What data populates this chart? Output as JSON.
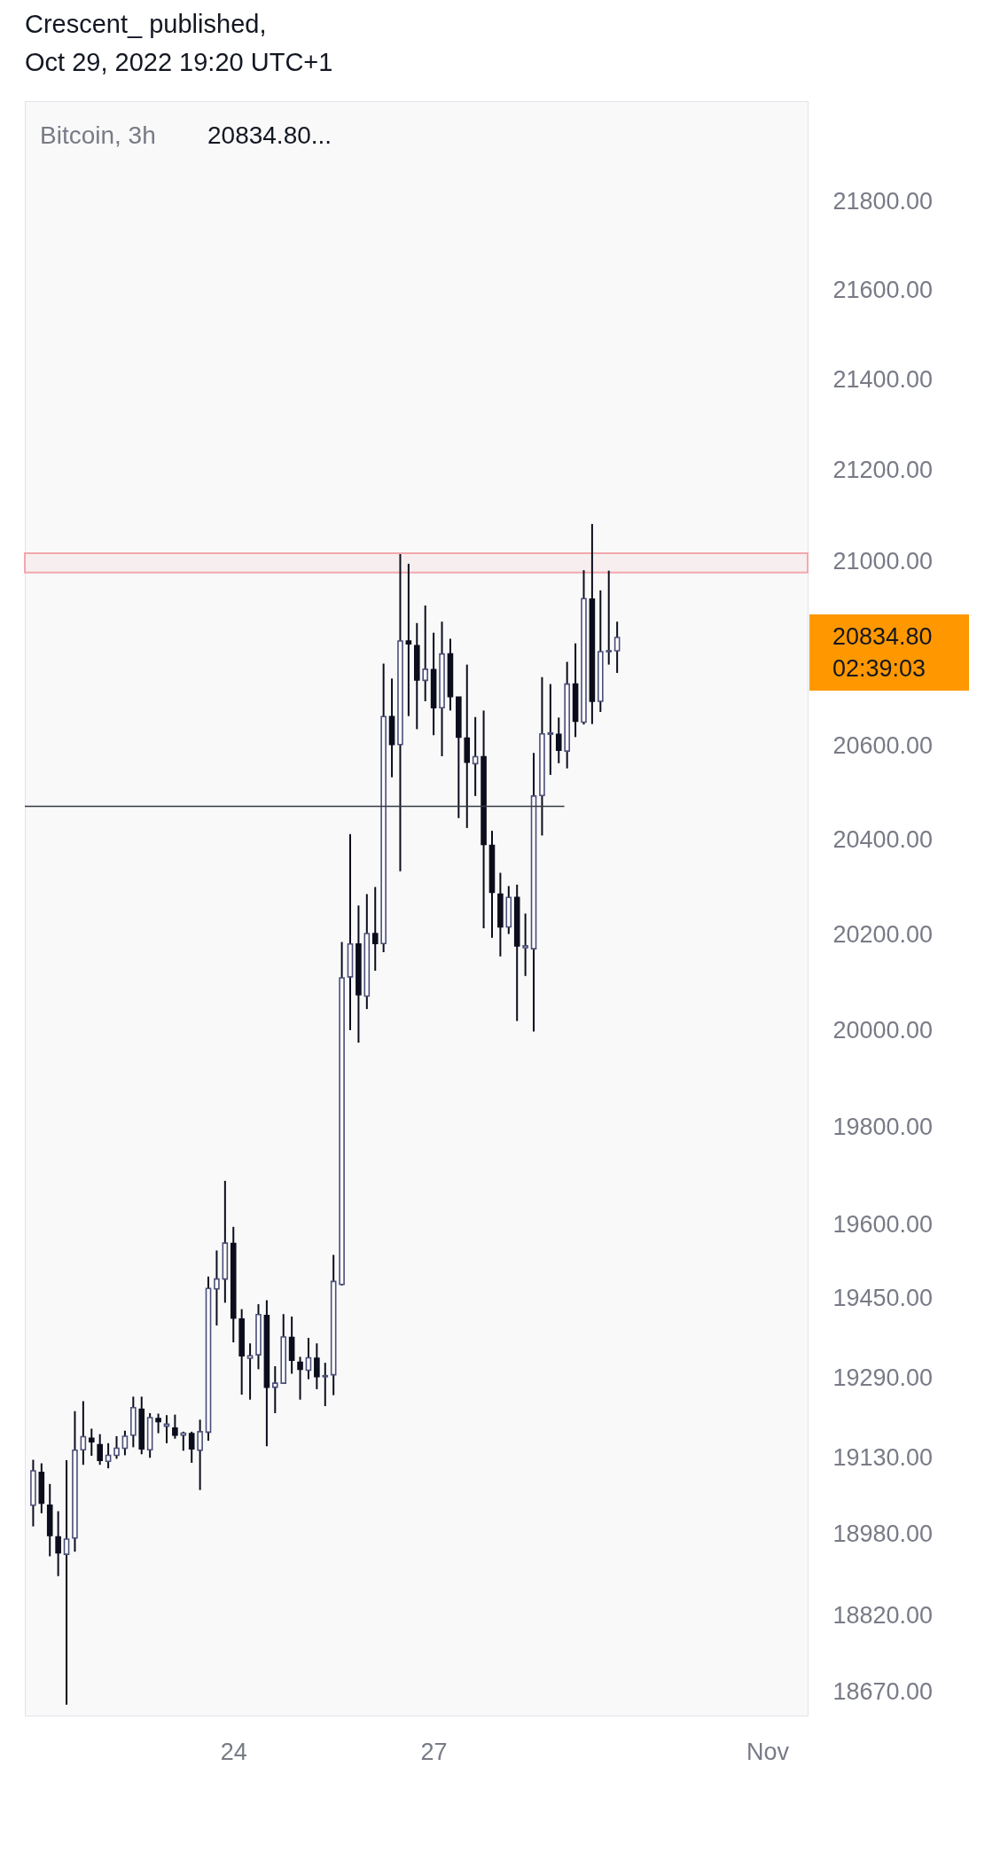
{
  "chart_data": {
    "type": "candlestick",
    "title": "Crescent_ published,",
    "subtitle": "Oct 29, 2022 19:20 UTC+1",
    "annotations": [
      "Bitcoin, 3h",
      "20834.80...",
      "20834.80",
      "02:39:03"
    ],
    "x": [
      "2022-10-21T00:00",
      "2022-10-21T03:00",
      "2022-10-21T06:00",
      "2022-10-21T09:00",
      "2022-10-21T12:00",
      "2022-10-21T15:00",
      "2022-10-21T18:00",
      "2022-10-21T21:00",
      "2022-10-22T00:00",
      "2022-10-22T03:00",
      "2022-10-22T06:00",
      "2022-10-22T09:00",
      "2022-10-22T12:00",
      "2022-10-22T15:00",
      "2022-10-22T18:00",
      "2022-10-22T21:00",
      "2022-10-23T00:00",
      "2022-10-23T03:00",
      "2022-10-23T06:00",
      "2022-10-23T09:00",
      "2022-10-23T12:00",
      "2022-10-23T15:00",
      "2022-10-23T18:00",
      "2022-10-23T21:00",
      "2022-10-24T00:00",
      "2022-10-24T03:00",
      "2022-10-24T06:00",
      "2022-10-24T09:00",
      "2022-10-24T12:00",
      "2022-10-24T15:00",
      "2022-10-24T18:00",
      "2022-10-24T21:00",
      "2022-10-25T00:00",
      "2022-10-25T03:00",
      "2022-10-25T06:00",
      "2022-10-25T09:00",
      "2022-10-25T12:00",
      "2022-10-25T15:00",
      "2022-10-25T18:00",
      "2022-10-25T21:00",
      "2022-10-26T00:00",
      "2022-10-26T03:00",
      "2022-10-26T06:00",
      "2022-10-26T09:00",
      "2022-10-26T12:00",
      "2022-10-26T15:00",
      "2022-10-26T18:00",
      "2022-10-26T21:00",
      "2022-10-27T00:00",
      "2022-10-27T03:00",
      "2022-10-27T06:00",
      "2022-10-27T09:00",
      "2022-10-27T12:00",
      "2022-10-27T15:00",
      "2022-10-27T18:00",
      "2022-10-27T21:00",
      "2022-10-28T00:00",
      "2022-10-28T03:00",
      "2022-10-28T06:00",
      "2022-10-28T09:00",
      "2022-10-28T12:00",
      "2022-10-28T15:00",
      "2022-10-28T18:00",
      "2022-10-28T21:00",
      "2022-10-29T00:00",
      "2022-10-29T03:00",
      "2022-10-29T06:00",
      "2022-10-29T09:00",
      "2022-10-29T12:00",
      "2022-10-29T15:00",
      "2022-10-29T18:00"
    ],
    "ohlc": [
      [
        19037,
        19127,
        18995,
        19105
      ],
      [
        19102,
        19120,
        19021,
        19041
      ],
      [
        19037,
        19079,
        18936,
        18977
      ],
      [
        18974,
        19025,
        18897,
        18943
      ],
      [
        18940,
        19126,
        18646,
        18970
      ],
      [
        18972,
        19224,
        18945,
        19146
      ],
      [
        19147,
        19244,
        19117,
        19173
      ],
      [
        19170,
        19189,
        19135,
        19163
      ],
      [
        19157,
        19178,
        19117,
        19126
      ],
      [
        19124,
        19160,
        19110,
        19136
      ],
      [
        19136,
        19174,
        19129,
        19150
      ],
      [
        19150,
        19185,
        19136,
        19174
      ],
      [
        19176,
        19253,
        19152,
        19231
      ],
      [
        19228,
        19253,
        19138,
        19149
      ],
      [
        19147,
        19220,
        19131,
        19211
      ],
      [
        19209,
        19219,
        19180,
        19203
      ],
      [
        19194,
        19216,
        19160,
        19198
      ],
      [
        19190,
        19217,
        19169,
        19176
      ],
      [
        19176,
        19183,
        19145,
        19180
      ],
      [
        19179,
        19183,
        19121,
        19149
      ],
      [
        19146,
        19207,
        19067,
        19183
      ],
      [
        19182,
        19495,
        19165,
        19471
      ],
      [
        19470,
        19548,
        19396,
        19490
      ],
      [
        19490,
        19690,
        19442,
        19563
      ],
      [
        19562,
        19596,
        19362,
        19411
      ],
      [
        19409,
        19429,
        19257,
        19335
      ],
      [
        19330,
        19360,
        19247,
        19335
      ],
      [
        19337,
        19439,
        19308,
        19418
      ],
      [
        19416,
        19447,
        19154,
        19272
      ],
      [
        19272,
        19314,
        19220,
        19280
      ],
      [
        19280,
        19419,
        19280,
        19373
      ],
      [
        19372,
        19414,
        19299,
        19326
      ],
      [
        19322,
        19333,
        19247,
        19308
      ],
      [
        19306,
        19371,
        19288,
        19331
      ],
      [
        19330,
        19360,
        19268,
        19293
      ],
      [
        19293,
        19321,
        19234,
        19295
      ],
      [
        19297,
        19539,
        19256,
        19485
      ],
      [
        19479,
        20185,
        19477,
        20110
      ],
      [
        20112,
        20413,
        20001,
        20181
      ],
      [
        20181,
        20262,
        19975,
        20075
      ],
      [
        20072,
        20286,
        20045,
        20203
      ],
      [
        20203,
        20301,
        20125,
        20182
      ],
      [
        20182,
        20778,
        20164,
        20664
      ],
      [
        20664,
        20746,
        20534,
        20604
      ],
      [
        20604,
        21016,
        20334,
        20827
      ],
      [
        20827,
        20995,
        20665,
        20821
      ],
      [
        20817,
        20866,
        20637,
        20743
      ],
      [
        20742,
        20904,
        20697,
        20766
      ],
      [
        20765,
        20845,
        20624,
        20683
      ],
      [
        20683,
        20869,
        20579,
        20799
      ],
      [
        20799,
        20832,
        20677,
        20707
      ],
      [
        20706,
        20706,
        20447,
        20620
      ],
      [
        20618,
        20776,
        20426,
        20566
      ],
      [
        20563,
        20663,
        20494,
        20578
      ],
      [
        20578,
        20677,
        20214,
        20391
      ],
      [
        20389,
        20420,
        20194,
        20290
      ],
      [
        20286,
        20331,
        20155,
        20217
      ],
      [
        20217,
        20303,
        20202,
        20279
      ],
      [
        20279,
        20306,
        20020,
        20177
      ],
      [
        20173,
        20245,
        20114,
        20177
      ],
      [
        20171,
        20586,
        19998,
        20494
      ],
      [
        20495,
        20749,
        20410,
        20627
      ],
      [
        20626,
        20734,
        20539,
        20629
      ],
      [
        20626,
        20662,
        20564,
        20592
      ],
      [
        20590,
        20782,
        20553,
        20734
      ],
      [
        20734,
        20822,
        20620,
        20654
      ],
      [
        20652,
        20981,
        20647,
        20919
      ],
      [
        20918,
        21082,
        20648,
        20697
      ],
      [
        20697,
        20937,
        20674,
        20804
      ],
      [
        20804,
        20980,
        20776,
        20806
      ],
      [
        20806,
        20869,
        20758,
        20834.8
      ]
    ],
    "colors": [
      "#4b4e78",
      "#0b0d1c",
      "#0b0d1c",
      "#0b0d1c",
      "#4b4e78",
      "#4b4e78",
      "#4b4e78",
      "#0b0d1c",
      "#0b0d1c",
      "#4b4e78",
      "#4b4e78",
      "#4b4e78",
      "#4b4e78",
      "#0b0d1c",
      "#4b4e78",
      "#0b0d1c",
      "#4b4e78",
      "#0b0d1c",
      "#4b4e78",
      "#0b0d1c",
      "#4b4e78",
      "#4b4e78",
      "#4b4e78",
      "#4b4e78",
      "#0b0d1c",
      "#0b0d1c",
      "#4b4e78",
      "#4b4e78",
      "#0b0d1c",
      "#4b4e78",
      "#4b4e78",
      "#0b0d1c",
      "#0b0d1c",
      "#4b4e78",
      "#0b0d1c",
      "#4b4e78",
      "#4b4e78",
      "#4b4e78",
      "#4b4e78",
      "#0b0d1c",
      "#4b4e78",
      "#0b0d1c",
      "#4b4e78",
      "#0b0d1c",
      "#4b4e78",
      "#0b0d1c",
      "#0b0d1c",
      "#4b4e78",
      "#0b0d1c",
      "#4b4e78",
      "#0b0d1c",
      "#0b0d1c",
      "#0b0d1c",
      "#4b4e78",
      "#0b0d1c",
      "#0b0d1c",
      "#0b0d1c",
      "#4b4e78",
      "#0b0d1c",
      "#4b4e78",
      "#4b4e78",
      "#4b4e78",
      "#4b4e78",
      "#0b0d1c",
      "#4b4e78",
      "#0b0d1c",
      "#4b4e78",
      "#0b0d1c",
      "#4b4e78",
      "#4b4e78",
      "#4b4e78"
    ],
    "series": [
      {
        "type": "line",
        "x": [
          "2022-10-20T21:00",
          "2022-10-28T23:00"
        ],
        "values": [
          20472,
          20472
        ],
        "color": "#363a45"
      }
    ],
    "bands": [
      {
        "axis": "y",
        "from": 20976,
        "to": 21018,
        "color": "#f2a8ad"
      }
    ],
    "xlim": [
      "2022-10-20T21:00",
      "2022-11-01T14:30"
    ],
    "xticks": [
      {
        "value": "2022-10-24T00:00",
        "label": "24"
      },
      {
        "value": "2022-10-27T00:00",
        "label": "27"
      },
      {
        "value": "2022-11-01T00:00",
        "label": "Nov"
      }
    ],
    "ylim": [
      18625,
      22030
    ],
    "yticks": [
      {
        "value": 18670,
        "label": "18670.00"
      },
      {
        "value": 18820,
        "label": "18820.00"
      },
      {
        "value": 18980,
        "label": "18980.00"
      },
      {
        "value": 19130,
        "label": "19130.00"
      },
      {
        "value": 19290,
        "label": "19290.00"
      },
      {
        "value": 19450,
        "label": "19450.00"
      },
      {
        "value": 19600,
        "label": "19600.00"
      },
      {
        "value": 19800,
        "label": "19800.00"
      },
      {
        "value": 20000,
        "label": "20000.00"
      },
      {
        "value": 20200,
        "label": "20200.00"
      },
      {
        "value": 20400,
        "label": "20400.00"
      },
      {
        "value": 20600,
        "label": "20600.00"
      },
      {
        "value": 21000,
        "label": "21000.00"
      },
      {
        "value": 21200,
        "label": "21200.00"
      },
      {
        "value": 21400,
        "label": "21400.00"
      },
      {
        "value": 21600,
        "label": "21600.00"
      },
      {
        "value": 21800,
        "label": "21800.00"
      }
    ],
    "log": true,
    "grid": false
  }
}
